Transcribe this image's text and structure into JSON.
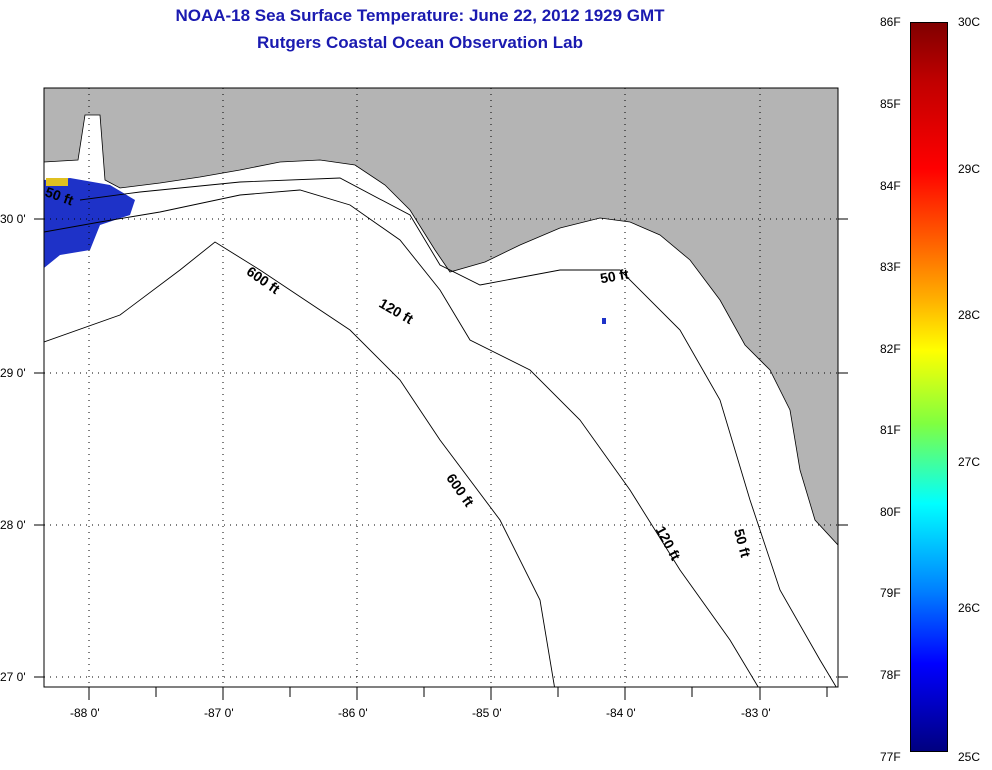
{
  "header": {
    "title": "NOAA-18 Sea Surface Temperature:  June 22, 2012 1929 GMT",
    "subtitle": "Rutgers Coastal Ocean Observation Lab"
  },
  "map": {
    "lon_ticks": [
      "-88 0'",
      "-87 0'",
      "-86 0'",
      "-85 0'",
      "-84 0'",
      "-83 0'"
    ],
    "lat_ticks": [
      "30 0'",
      "29 0'",
      "28 0'",
      "27 0'"
    ],
    "contour_labels": [
      "50 ft",
      "600 ft",
      "120 ft",
      "50 ft",
      "600 ft",
      "120 ft",
      "50 ft"
    ],
    "colors": {
      "land": "#b4b4b4",
      "ocean": "#ffffff",
      "sst_patch": "#1e32c8"
    }
  },
  "colorbar": {
    "fahrenheit": [
      "86F",
      "85F",
      "84F",
      "83F",
      "82F",
      "81F",
      "80F",
      "79F",
      "78F",
      "77F"
    ],
    "celsius": [
      "30C",
      "29C",
      "28C",
      "27C",
      "26C",
      "25C"
    ]
  }
}
